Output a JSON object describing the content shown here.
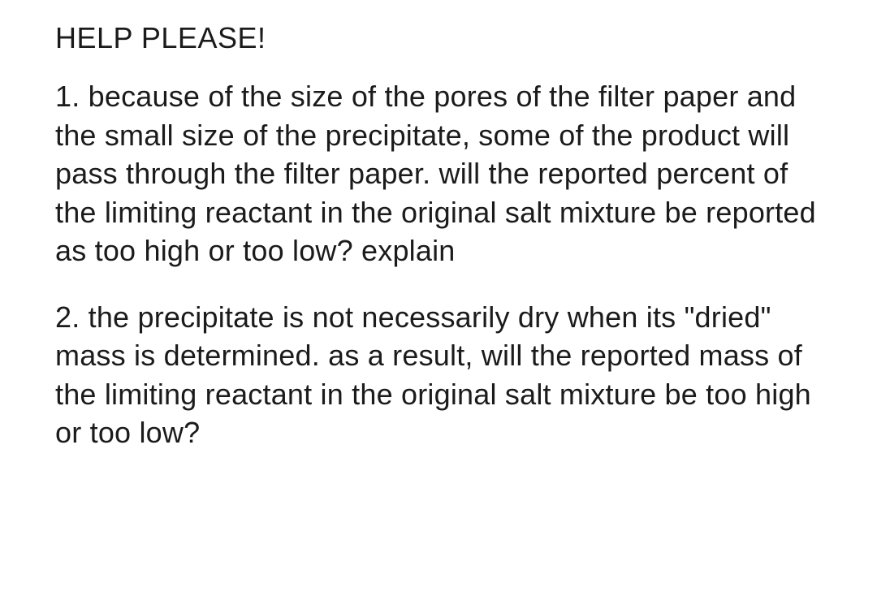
{
  "document": {
    "heading": "HELP PLEASE!",
    "paragraphs": [
      "1. because of the size of the pores of the filter paper and the small size of the precipitate, some of the product will pass through the filter paper. will the reported percent of the limiting reactant in the original salt mixture be reported as too high or too low? explain",
      "2. the precipitate is not necessarily dry when its \"dried\" mass is determined. as a result, will the reported mass of the limiting reactant in the original salt mixture be too high or too low?"
    ],
    "text_color": "#1b1b1b",
    "background_color": "#ffffff",
    "font_size_pt": 27,
    "font_family": "Helvetica Neue / sans-serif",
    "line_height": 1.32
  }
}
